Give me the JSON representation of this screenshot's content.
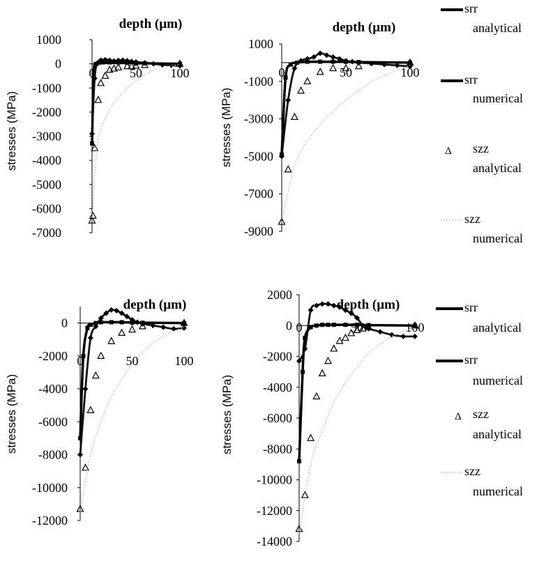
{
  "legend_labels": {
    "srr_analytical": [
      "srr",
      "analytical"
    ],
    "srr_numerical": [
      "srr",
      "numerical"
    ],
    "szz_analytical": [
      "szz",
      "analytical"
    ],
    "szz_numerical": [
      "szz",
      "numerical"
    ]
  },
  "colors": {
    "srr_analytical": "#000000",
    "srr_numerical": "#111111",
    "szz_analytical": "#000000",
    "szz_numerical": "#bdbdbd"
  },
  "chart_data": [
    {
      "type": "line",
      "xlabel": "depth (µm)",
      "ylabel": "stresses (MPa)",
      "xlim": [
        0,
        100
      ],
      "ylim": [
        -7000,
        1000
      ],
      "xticks": [
        "0",
        "50",
        "100"
      ],
      "yticks": [
        "1000",
        "0",
        "-1000",
        "-2000",
        "-3000",
        "-4000",
        "-5000",
        "-6000",
        "-7000"
      ],
      "grid": false,
      "series": [
        {
          "name": "srr analytical",
          "x": [
            0,
            2,
            5,
            8,
            12,
            20,
            30,
            40,
            50,
            60,
            100
          ],
          "y": [
            -3300,
            -300,
            0,
            50,
            60,
            60,
            60,
            50,
            30,
            20,
            0
          ]
        },
        {
          "name": "srr numerical",
          "x": [
            0,
            3,
            6,
            10,
            15,
            20,
            25,
            30,
            35,
            40,
            45,
            50,
            60,
            70,
            80,
            90,
            100
          ],
          "y": [
            -2900,
            -600,
            30,
            150,
            170,
            150,
            120,
            140,
            150,
            130,
            100,
            80,
            40,
            0,
            -40,
            -60,
            -80
          ]
        },
        {
          "name": "szz analytical",
          "x": [
            0,
            1,
            3,
            7,
            10,
            15,
            20,
            25,
            30,
            40,
            45,
            50,
            60,
            100
          ],
          "y": [
            -6500,
            -6300,
            -3500,
            -1500,
            -800,
            -500,
            -250,
            -200,
            -150,
            -100,
            -100,
            -80,
            -50,
            0
          ]
        },
        {
          "name": "szz numerical",
          "x": [
            0,
            5,
            10,
            20,
            30,
            40,
            50,
            60,
            70,
            80,
            90,
            100
          ],
          "y": [
            -6500,
            -3700,
            -2700,
            -1900,
            -1400,
            -1000,
            -700,
            -450,
            -250,
            -150,
            -80,
            -30
          ]
        }
      ]
    },
    {
      "type": "line",
      "xlabel": "depth (µm)",
      "ylabel": "stresses (MPa)",
      "xlim": [
        0,
        100
      ],
      "ylim": [
        -9000,
        1000
      ],
      "xticks": [
        "0",
        "50",
        "100"
      ],
      "yticks": [
        "1000",
        "-1000",
        "-3000",
        "-5000",
        "-7000",
        "-9000"
      ],
      "grid": false,
      "series": [
        {
          "name": "srr analytical",
          "x": [
            0,
            3,
            7,
            12,
            20,
            30,
            40,
            50,
            60,
            100
          ],
          "y": [
            -4900,
            -800,
            -100,
            0,
            50,
            50,
            50,
            50,
            30,
            0
          ]
        },
        {
          "name": "srr numerical",
          "x": [
            0,
            5,
            10,
            15,
            20,
            25,
            30,
            35,
            40,
            45,
            50,
            55,
            60,
            70,
            80,
            90,
            100
          ],
          "y": [
            -5000,
            -2000,
            -300,
            100,
            200,
            300,
            500,
            400,
            300,
            200,
            100,
            50,
            0,
            -50,
            -100,
            -150,
            -200
          ]
        },
        {
          "name": "szz analytical",
          "x": [
            0,
            5,
            10,
            15,
            20,
            30,
            40,
            50,
            60,
            100
          ],
          "y": [
            -8500,
            -5700,
            -2900,
            -1500,
            -1000,
            -500,
            -300,
            -300,
            -200,
            0
          ]
        },
        {
          "name": "szz numerical",
          "x": [
            0,
            10,
            20,
            30,
            40,
            50,
            60,
            70,
            80,
            90,
            100
          ],
          "y": [
            -8500,
            -5500,
            -4200,
            -3300,
            -2600,
            -2000,
            -1500,
            -1000,
            -700,
            -400,
            -150
          ]
        }
      ]
    },
    {
      "type": "line",
      "xlabel": "depth (µm)",
      "ylabel": "stresses (MPa)",
      "xlim": [
        0,
        100
      ],
      "ylim": [
        -12000,
        1000
      ],
      "xticks": [
        "0",
        "50",
        "100"
      ],
      "yticks": [
        "0",
        "-2000",
        "-4000",
        "-6000",
        "-8000",
        "-10000",
        "-12000"
      ],
      "grid": false,
      "series": [
        {
          "name": "srr analytical",
          "x": [
            0,
            3,
            7,
            10,
            15,
            20,
            30,
            40,
            50,
            60,
            100
          ],
          "y": [
            -7000,
            -2000,
            -300,
            -100,
            0,
            50,
            50,
            50,
            30,
            20,
            0
          ]
        },
        {
          "name": "srr numerical",
          "x": [
            0,
            5,
            10,
            15,
            20,
            25,
            30,
            35,
            40,
            45,
            50,
            55,
            60,
            70,
            80,
            90,
            100
          ],
          "y": [
            -8000,
            -4000,
            -900,
            -200,
            300,
            600,
            800,
            750,
            600,
            400,
            200,
            50,
            -50,
            -150,
            -250,
            -350,
            -300
          ]
        },
        {
          "name": "szz analytical",
          "x": [
            0,
            5,
            10,
            15,
            20,
            30,
            40,
            50,
            60,
            100
          ],
          "y": [
            -11300,
            -8800,
            -5300,
            -3200,
            -2000,
            -1100,
            -600,
            -400,
            -200,
            0
          ]
        },
        {
          "name": "szz numerical",
          "x": [
            0,
            10,
            20,
            30,
            40,
            50,
            60,
            70,
            80,
            90,
            100
          ],
          "y": [
            -11500,
            -8000,
            -6000,
            -4500,
            -3400,
            -2500,
            -1800,
            -1200,
            -800,
            -500,
            -250
          ]
        }
      ]
    },
    {
      "type": "line",
      "xlabel": "depth (µm)",
      "ylabel": "stresses (MPa)",
      "xlim": [
        0,
        100
      ],
      "ylim": [
        -14000,
        2000
      ],
      "xticks": [
        "0",
        "50",
        "100"
      ],
      "yticks": [
        "2000",
        "0",
        "-2000",
        "-4000",
        "-6000",
        "-8000",
        "-10000",
        "-12000",
        "-14000"
      ],
      "grid": false,
      "series": [
        {
          "name": "srr analytical",
          "x": [
            0,
            3,
            5,
            10,
            15,
            20,
            25,
            30,
            40,
            50,
            60,
            100
          ],
          "y": [
            -8800,
            -3000,
            -800,
            -100,
            0,
            50,
            50,
            50,
            50,
            50,
            30,
            0
          ]
        },
        {
          "name": "srr numerical",
          "x": [
            0,
            5,
            10,
            15,
            20,
            25,
            30,
            35,
            40,
            45,
            50,
            55,
            60,
            70,
            80,
            90,
            100
          ],
          "y": [
            -2300,
            -1500,
            1000,
            1300,
            1400,
            1400,
            1300,
            1200,
            1000,
            800,
            500,
            0,
            -200,
            -400,
            -600,
            -700,
            -700
          ]
        },
        {
          "name": "szz analytical",
          "x": [
            0,
            5,
            10,
            15,
            20,
            25,
            30,
            35,
            40,
            45,
            50,
            55,
            60,
            100
          ],
          "y": [
            -13200,
            -11000,
            -7300,
            -4600,
            -3100,
            -2300,
            -1500,
            -1000,
            -800,
            -500,
            -300,
            -200,
            -100,
            0
          ]
        },
        {
          "name": "szz numerical",
          "x": [
            0,
            10,
            20,
            30,
            40,
            50,
            60,
            70,
            80,
            90,
            100
          ],
          "y": [
            -13500,
            -9000,
            -6800,
            -5000,
            -3700,
            -2700,
            -1800,
            -1200,
            -700,
            -400,
            -150
          ]
        }
      ]
    }
  ]
}
